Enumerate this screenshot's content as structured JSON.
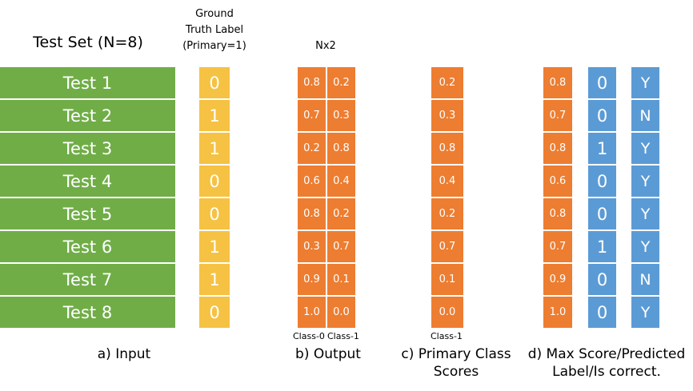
{
  "headers": {
    "test_set": "Test Set (N=8)",
    "ground_truth": [
      "Ground",
      "Truth Label",
      "(Primary=1)"
    ],
    "nx2": "Nx2"
  },
  "tests": [
    "Test 1",
    "Test 2",
    "Test 3",
    "Test 4",
    "Test 5",
    "Test 6",
    "Test 7",
    "Test 8"
  ],
  "ground_truth_labels": [
    "0",
    "1",
    "1",
    "0",
    "0",
    "1",
    "1",
    "0"
  ],
  "output_class0": [
    "0.8",
    "0.7",
    "0.2",
    "0.6",
    "0.8",
    "0.3",
    "0.9",
    "1.0"
  ],
  "output_class1": [
    "0.2",
    "0.3",
    "0.8",
    "0.4",
    "0.2",
    "0.7",
    "0.1",
    "0.0"
  ],
  "primary_scores": [
    "0.2",
    "0.3",
    "0.8",
    "0.4",
    "0.2",
    "0.7",
    "0.1",
    "0.0"
  ],
  "max_scores": [
    "0.8",
    "0.7",
    "0.8",
    "0.6",
    "0.8",
    "0.7",
    "0.9",
    "1.0"
  ],
  "predicted_labels": [
    "0",
    "0",
    "1",
    "0",
    "0",
    "1",
    "0",
    "0"
  ],
  "is_correct": [
    "Y",
    "N",
    "Y",
    "Y",
    "Y",
    "Y",
    "N",
    "Y"
  ],
  "sublabels": {
    "class0": "Class-0",
    "class1": "Class-1",
    "primary_class": "Class-1"
  },
  "captions": {
    "a": "a) Input",
    "b": "b) Output",
    "c": [
      "c) Primary Class",
      "Scores"
    ],
    "d": [
      "d) Max Score/Predicted",
      "Label/Is correct."
    ]
  },
  "colors": {
    "green": "#70ad47",
    "yellow": "#f5c243",
    "orange": "#ed7d31",
    "blue": "#5b9bd5"
  }
}
